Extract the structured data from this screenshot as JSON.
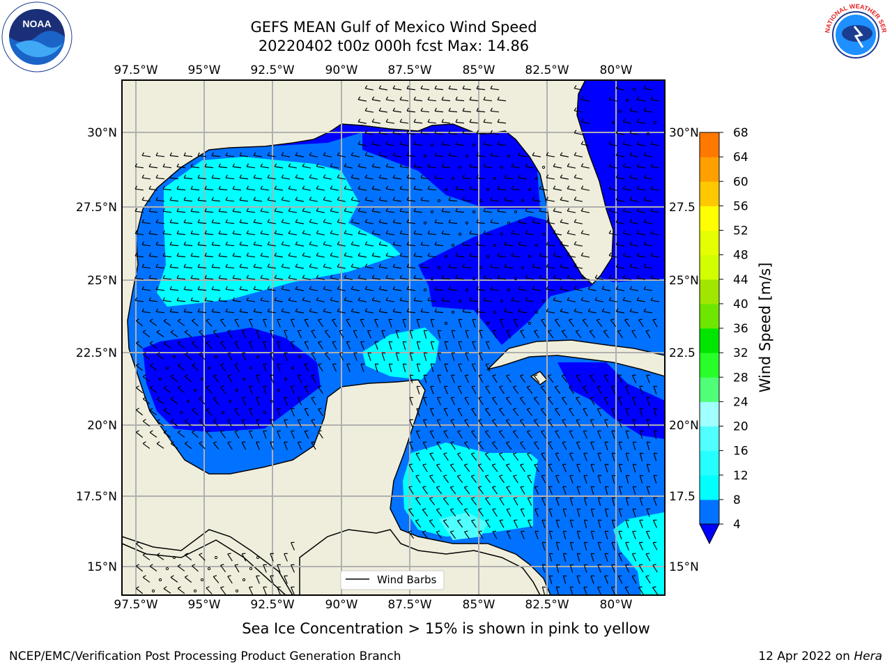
{
  "title_line1": "GEFS MEAN Gulf of Mexico Wind Speed",
  "title_line2": "20220402 t00z 000h fcst   Max: 14.86",
  "caption": "Sea Ice Concentration > 15% is shown in pink to yellow",
  "footer_left": "NCEP/EMC/Verification Post Processing Product Generation Branch",
  "footer_right_date": "12 Apr 2022 on ",
  "footer_right_host": "Hera",
  "legend_label": "Wind Barbs",
  "lon_labels": [
    "97.5°W",
    "95°W",
    "92.5°W",
    "90°W",
    "87.5°W",
    "85°W",
    "82.5°W",
    "80°W"
  ],
  "lat_labels_left": [
    "30°N",
    "27.5°N",
    "25°N",
    "22.5°N",
    "20°N",
    "17.5°N",
    "15°N"
  ],
  "lat_labels_right": [
    "30°N",
    "27.5",
    "25°N",
    "22.5",
    "20°N",
    "17.5",
    "15°N"
  ],
  "colorbar": {
    "label": "Wind Speed [m/s]",
    "ticks": [
      "4",
      "8",
      "12",
      "16",
      "20",
      "24",
      "28",
      "32",
      "36",
      "40",
      "44",
      "48",
      "52",
      "56",
      "60",
      "64",
      "68"
    ],
    "colors": [
      "#0072ff",
      "#00ffff",
      "#26ffff",
      "#50ffff",
      "#a0ffff",
      "#50ff78",
      "#28ff28",
      "#00e600",
      "#6ee600",
      "#a0e600",
      "#d2ff00",
      "#e6ff00",
      "#ffff00",
      "#ffc800",
      "#ffa000",
      "#ff7800",
      "#ff5000",
      "#ff0000"
    ],
    "under_color": "#0000ff"
  },
  "colors": {
    "land": "#efeedc",
    "lowest": "#0000ff",
    "mid": "#0072ff",
    "high": "#00ffff",
    "highest": "#50ffff"
  },
  "logos": {
    "noaa_text": "NOAA",
    "nws_text": "NATIONAL WEATHER SERVICE"
  }
}
